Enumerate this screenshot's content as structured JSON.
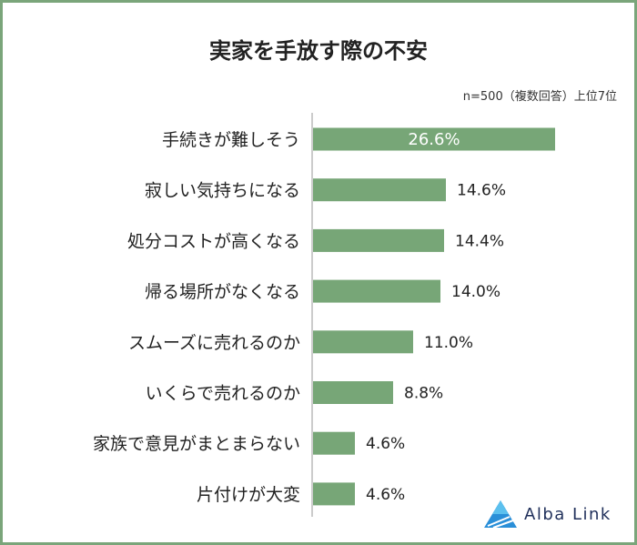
{
  "title": "実家を手放す際の不安",
  "note": "n=500（複数回答）上位7位",
  "colors": {
    "bar": "#77a677",
    "frame": "#7aa57a",
    "axis": "#999999",
    "label_inside": "#ffffff",
    "label_outside": "#222222"
  },
  "chart_data": {
    "type": "bar",
    "orientation": "horizontal",
    "categories": [
      "手続きが難しそう",
      "寂しい気持ちになる",
      "処分コストが高くなる",
      "帰る場所がなくなる",
      "スムーズに売れるのか",
      "いくらで売れるのか",
      "家族で意見がまとまらない",
      "片付けが大変"
    ],
    "values": [
      26.6,
      14.6,
      14.4,
      14.0,
      11.0,
      8.8,
      4.6,
      4.6
    ],
    "value_labels": [
      "26.6%",
      "14.6%",
      "14.4%",
      "14.0%",
      "11.0%",
      "8.8%",
      "4.6%",
      "4.6%"
    ],
    "xlim": [
      0,
      28.3
    ],
    "grid": false
  },
  "logo": {
    "text": "Alba Link",
    "icon": "triangle-logo-icon"
  }
}
